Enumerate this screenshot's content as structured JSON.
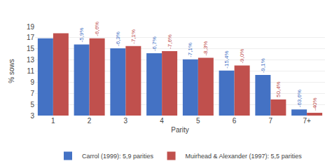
{
  "chart_data": {
    "type": "bar",
    "categories": [
      "1",
      "2",
      "3",
      "4",
      "5",
      "6",
      "7",
      "7+"
    ],
    "series": [
      {
        "name": "Carrol (1999): 5,9 parities",
        "color": "#4472C4",
        "values": [
          16.9,
          15.8,
          15.1,
          14.2,
          13.1,
          11.1,
          10.3,
          4.1
        ],
        "annotations": [
          {
            "category": "2",
            "text": "-5,9%"
          },
          {
            "category": "3",
            "text": "-6,3%"
          },
          {
            "category": "4",
            "text": "-6,7%"
          },
          {
            "category": "5",
            "text": "-7,1%"
          },
          {
            "category": "6",
            "text": "-15,4%"
          },
          {
            "category": "7",
            "text": "-9,1%"
          },
          {
            "category": "7+",
            "text": "-63,6%"
          }
        ]
      },
      {
        "name": "Muirhead & Alexander (1997): 5,5 parities",
        "color": "#C0504D",
        "values": [
          17.8,
          16.9,
          15.5,
          14.6,
          13.4,
          12.0,
          5.9,
          3.5
        ],
        "annotations": [
          {
            "category": "2",
            "text": "-6,6%"
          },
          {
            "category": "3",
            "text": "-7,1%"
          },
          {
            "category": "4",
            "text": "-7,6%"
          },
          {
            "category": "5",
            "text": "-8,3%"
          },
          {
            "category": "6",
            "text": "-9,0%"
          },
          {
            "category": "7",
            "text": "50,4%"
          },
          {
            "category": "7+",
            "text": "-40%"
          }
        ]
      }
    ],
    "xlabel": "Parity",
    "ylabel": "% sows",
    "ylim": [
      3,
      19
    ],
    "yticks": [
      3,
      5,
      7,
      9,
      11,
      13,
      15,
      17,
      19
    ],
    "grid": true,
    "legend": "bottom"
  }
}
